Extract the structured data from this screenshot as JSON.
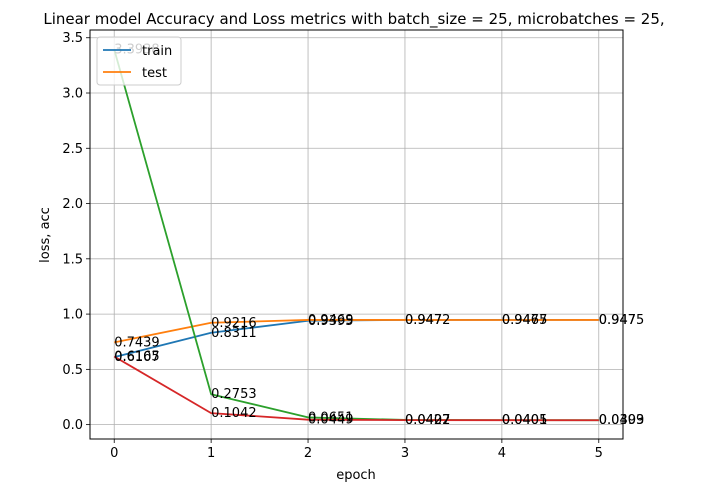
{
  "chart_data": {
    "type": "line",
    "title": "Linear model Accuracy and Loss metrics with batch_size = 25, microbatches = 25,",
    "xlabel": "epoch",
    "ylabel": "loss, acc",
    "x": [
      0,
      1,
      2,
      3,
      4,
      5
    ],
    "xlim": [
      -0.25,
      5.25
    ],
    "ylim": [
      -0.13,
      3.57
    ],
    "xticks": [
      "0",
      "1",
      "2",
      "3",
      "4",
      "5"
    ],
    "yticks": [
      "0.0",
      "0.5",
      "1.0",
      "1.5",
      "2.0",
      "2.5",
      "3.0",
      "3.5"
    ],
    "grid": true,
    "legend_position": "top-left",
    "series": [
      {
        "name": "train",
        "color": "#1f77b4",
        "values": [
          0.6107,
          0.8311,
          0.9395,
          0.947,
          0.9475,
          0.9475
        ],
        "labels": [
          "0.6107",
          "0.8311",
          "0.9395",
          "0.947",
          "0.9475",
          "0.9475"
        ]
      },
      {
        "name": "test",
        "color": "#ff7f0e",
        "values": [
          0.7439,
          0.9216,
          0.9469,
          0.9472,
          0.9467,
          0.947
        ],
        "labels": [
          "0.7439",
          "0.9216",
          "0.9469",
          "0.9472",
          "0.9467",
          "0.947"
        ]
      },
      {
        "name": "",
        "color": "#2ca02c",
        "values": [
          3.3938,
          0.2753,
          0.0651,
          0.0422,
          0.0405,
          0.0403
        ],
        "labels": [
          "3.3938",
          "0.2753",
          "0.0651",
          "0.0422",
          "0.0405",
          "0.0403"
        ]
      },
      {
        "name": "",
        "color": "#d62728",
        "values": [
          0.6165,
          0.1042,
          0.0449,
          0.0407,
          0.0401,
          0.0399
        ],
        "labels": [
          "0.6165",
          "0.1042",
          "0.0449",
          "0.0407",
          "0.0401",
          "0.0399"
        ]
      }
    ]
  }
}
